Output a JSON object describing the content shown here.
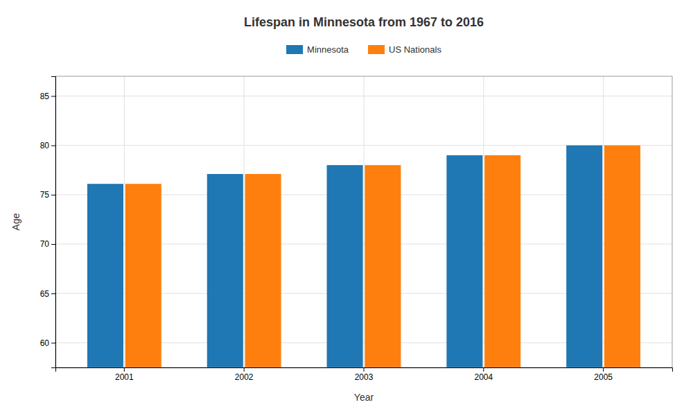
{
  "chart_data": {
    "type": "bar",
    "title": "Lifespan in Minnesota from 1967 to 2016",
    "xlabel": "Year",
    "ylabel": "Age",
    "categories": [
      "2001",
      "2002",
      "2003",
      "2004",
      "2005"
    ],
    "series": [
      {
        "name": "Minnesota",
        "values": [
          76.1,
          77.1,
          78.0,
          79.0,
          80.0
        ]
      },
      {
        "name": "US Nationals",
        "values": [
          76.1,
          77.1,
          78.0,
          79.0,
          80.0
        ]
      }
    ],
    "ylim": [
      57.5,
      87
    ],
    "yticks": [
      60,
      65,
      70,
      75,
      80,
      85
    ],
    "grid": true,
    "legend": "top"
  }
}
